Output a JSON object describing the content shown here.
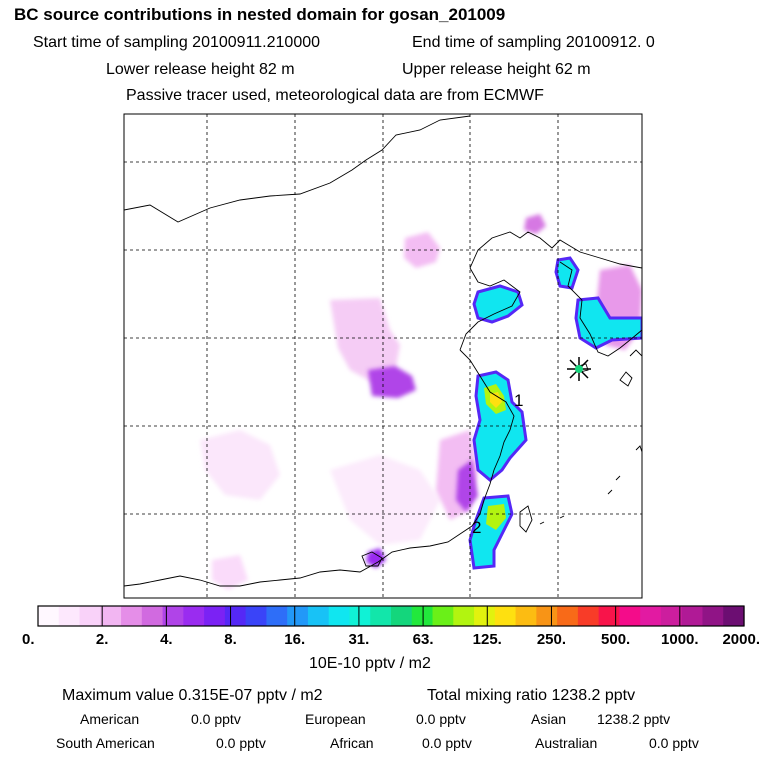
{
  "header": {
    "title": "BC  source contributions in nested domain for gosan_201009",
    "start_label": "Start time of sampling 20100911.210000",
    "end_label": "End time of sampling 20100912.     0",
    "lower_label": "Lower release height   82 m",
    "upper_label": "Upper release height   62 m",
    "tracer_note": "Passive tracer used, meteorological data are from ECMWF"
  },
  "chart_data": {
    "type": "heatmap",
    "title": "BC  source contributions in nested domain for gosan_201009",
    "colorbar": {
      "unit": "10E-10 pptv / m2",
      "tick_labels": [
        "0.",
        "2.",
        "4.",
        "8.",
        "16.",
        "31.",
        "63.",
        "125.",
        "250.",
        "500.",
        "1000.",
        "2000."
      ],
      "colors": [
        "#fff8ff",
        "#fde8fd",
        "#f9d2f9",
        "#f2b6f2",
        "#e58ee8",
        "#d16ae0",
        "#b044e8",
        "#9a2cf0",
        "#7b22f4",
        "#5528f6",
        "#3a44f8",
        "#2e6ef8",
        "#2298f8",
        "#18c2f6",
        "#10e6f0",
        "#10f2d6",
        "#12e6aa",
        "#14d67c",
        "#22e83c",
        "#6af018",
        "#b2f410",
        "#e2f20e",
        "#fee010",
        "#fcbc12",
        "#f89416",
        "#f86a18",
        "#f83c28",
        "#f8144a",
        "#f40c8a",
        "#e21aa2",
        "#cc1e9e",
        "#b01a96",
        "#901486",
        "#6c0e72"
      ]
    },
    "annotations": [
      {
        "label": "1"
      },
      {
        "label": "2"
      }
    ],
    "receptor": "gosan"
  },
  "stats": {
    "max_value": "Maximum value  0.315E-07 pptv / m2",
    "total_mixing": "Total mixing ratio      1238.2 pptv",
    "american_label": "American",
    "american_value": "0.0 pptv",
    "european_label": "European",
    "european_value": "0.0 pptv",
    "asian_label": "Asian",
    "asian_value": "1238.2 pptv",
    "south_american_label": "South American",
    "south_american_value": "0.0 pptv",
    "african_label": "African",
    "african_value": "0.0 pptv",
    "australian_label": "Australian",
    "australian_value": "0.0 pptv"
  }
}
